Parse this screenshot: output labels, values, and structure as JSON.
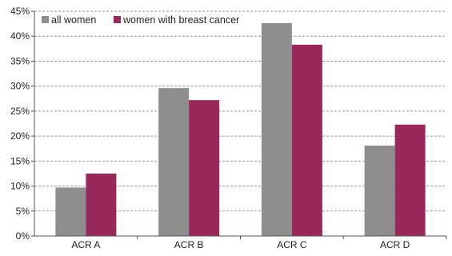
{
  "chart_data": {
    "type": "bar",
    "categories": [
      "ACR A",
      "ACR B",
      "ACR C",
      "ACR D"
    ],
    "series": [
      {
        "name": "all women",
        "values": [
          9.7,
          29.6,
          42.6,
          18.1
        ],
        "color": "#8e8e8e"
      },
      {
        "name": "women with breast cancer",
        "values": [
          12.5,
          27.2,
          38.3,
          22.3
        ],
        "color": "#98285a"
      }
    ],
    "ylim": [
      0,
      45
    ],
    "yticks": [
      0,
      5,
      10,
      15,
      20,
      25,
      30,
      35,
      40,
      45
    ],
    "ytick_labels": [
      "0%",
      "5%",
      "10%",
      "15%",
      "20%",
      "25%",
      "30%",
      "35%",
      "40%",
      "45%"
    ],
    "grid": true,
    "legend_position": "top-left"
  }
}
